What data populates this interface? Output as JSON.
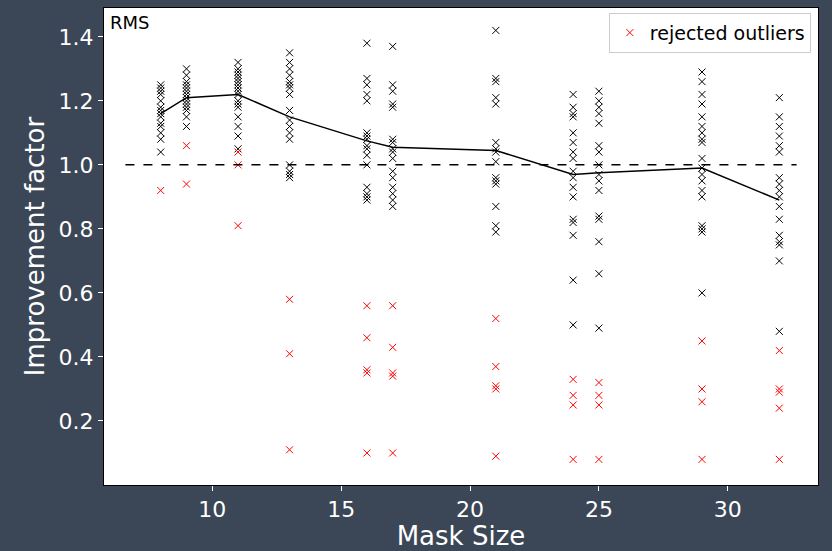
{
  "chart_data": {
    "type": "scatter",
    "annotations": [
      "RMS"
    ],
    "x_label": "Mask Size",
    "y_label": "Improvement factor",
    "xlim": [
      5.8,
      33.5
    ],
    "xticks": [
      10,
      15,
      20,
      25,
      30
    ],
    "ylim": [
      0.0,
      1.49
    ],
    "yticks": [
      0.2,
      0.4,
      0.6,
      0.8,
      {
        "value": 1.0,
        "label": "1.0"
      },
      1.2,
      1.4
    ],
    "grid": false,
    "legend": "top right",
    "reference_line": {
      "value": 1.0,
      "line_style": "dashed",
      "color": "#000000"
    },
    "series": [
      {
        "type": "scatter",
        "color": "#000000",
        "marker": "x",
        "x": [
          8,
          8,
          8,
          8,
          8,
          8,
          8,
          8,
          8,
          8,
          8,
          8,
          8,
          8,
          9,
          9,
          9,
          9,
          9,
          9,
          9,
          9,
          9,
          9,
          9,
          9,
          9,
          9,
          11,
          11,
          11,
          11,
          11,
          11,
          11,
          11,
          11,
          11,
          11,
          11,
          11,
          11,
          11,
          11,
          11,
          13,
          13,
          13,
          13,
          13,
          13,
          13,
          13,
          13,
          13,
          13,
          13,
          13,
          13,
          13,
          13,
          13,
          16,
          16,
          16,
          16,
          16,
          16,
          16,
          16,
          16,
          16,
          16,
          16,
          16,
          16,
          16,
          16,
          17,
          17,
          17,
          17,
          17,
          17,
          17,
          17,
          17,
          17,
          17,
          17,
          17,
          17,
          17,
          17,
          21,
          21,
          21,
          21,
          21,
          21,
          21,
          21,
          21,
          21,
          21,
          21,
          21,
          21,
          21,
          24,
          24,
          24,
          24,
          24,
          24,
          24,
          24,
          24,
          24,
          24,
          24,
          24,
          24,
          24,
          24,
          24,
          25,
          25,
          25,
          25,
          25,
          25,
          25,
          25,
          25,
          25,
          25,
          25,
          25,
          25,
          25,
          25,
          29,
          29,
          29,
          29,
          29,
          29,
          29,
          29,
          29,
          29,
          29,
          29,
          29,
          29,
          29,
          29,
          29,
          29,
          29,
          32,
          32,
          32,
          32,
          32,
          32,
          32,
          32,
          32,
          32,
          32,
          32,
          32,
          32,
          32,
          32,
          32
        ],
        "values": [
          1.25,
          1.24,
          1.23,
          1.22,
          1.2,
          1.18,
          1.17,
          1.16,
          1.15,
          1.13,
          1.12,
          1.1,
          1.08,
          1.04,
          1.3,
          1.28,
          1.26,
          1.25,
          1.24,
          1.23,
          1.22,
          1.21,
          1.2,
          1.19,
          1.18,
          1.17,
          1.15,
          1.12,
          1.32,
          1.3,
          1.29,
          1.28,
          1.27,
          1.26,
          1.25,
          1.24,
          1.23,
          1.22,
          1.2,
          1.19,
          1.18,
          1.15,
          1.12,
          1.09,
          1.05,
          1.35,
          1.32,
          1.3,
          1.28,
          1.26,
          1.25,
          1.24,
          1.22,
          1.17,
          1.14,
          1.12,
          1.1,
          1.08,
          1.0,
          0.98,
          0.97,
          0.96,
          1.38,
          1.27,
          1.25,
          1.22,
          1.2,
          1.1,
          1.09,
          1.08,
          1.06,
          1.05,
          1.03,
          1.0,
          0.93,
          0.91,
          0.9,
          0.89,
          1.37,
          1.25,
          1.23,
          1.19,
          1.18,
          1.08,
          1.07,
          1.05,
          1.04,
          1.02,
          0.98,
          0.96,
          0.93,
          0.91,
          0.89,
          0.87,
          1.42,
          1.27,
          1.26,
          1.21,
          1.19,
          1.07,
          1.05,
          1.04,
          1.01,
          0.96,
          0.95,
          0.94,
          0.87,
          0.81,
          0.79,
          1.22,
          1.18,
          1.16,
          1.15,
          1.1,
          1.07,
          1.04,
          1.02,
          0.98,
          0.96,
          0.93,
          0.9,
          0.83,
          0.82,
          0.78,
          0.64,
          0.5,
          1.23,
          1.2,
          1.18,
          1.16,
          1.13,
          1.06,
          1.04,
          1.0,
          0.97,
          0.95,
          0.92,
          0.84,
          0.83,
          0.76,
          0.66,
          0.49,
          1.29,
          1.26,
          1.22,
          1.19,
          1.15,
          1.12,
          1.1,
          1.08,
          1.07,
          1.02,
          0.99,
          0.97,
          0.95,
          0.92,
          0.9,
          0.81,
          0.8,
          0.79,
          0.6,
          1.21,
          1.15,
          1.12,
          1.09,
          1.06,
          1.04,
          0.96,
          0.94,
          0.92,
          0.9,
          0.87,
          0.83,
          0.78,
          0.76,
          0.75,
          0.7,
          0.48
        ]
      },
      {
        "name": "rejected outliers",
        "type": "scatter",
        "color": "#ff0000",
        "marker": "x",
        "x": [
          8,
          9,
          9,
          11,
          11,
          11,
          13,
          13,
          13,
          16,
          16,
          16,
          16,
          16,
          17,
          17,
          17,
          17,
          17,
          21,
          21,
          21,
          21,
          21,
          24,
          24,
          24,
          24,
          25,
          25,
          25,
          25,
          29,
          29,
          29,
          29,
          32,
          32,
          32,
          32,
          32
        ],
        "values": [
          0.92,
          1.06,
          0.94,
          1.04,
          1.0,
          0.81,
          0.58,
          0.41,
          0.11,
          0.56,
          0.46,
          0.36,
          0.35,
          0.1,
          0.56,
          0.43,
          0.35,
          0.34,
          0.1,
          0.52,
          0.37,
          0.31,
          0.3,
          0.09,
          0.33,
          0.28,
          0.25,
          0.08,
          0.32,
          0.28,
          0.25,
          0.08,
          0.45,
          0.3,
          0.26,
          0.08,
          0.42,
          0.3,
          0.29,
          0.24,
          0.08
        ]
      },
      {
        "type": "line",
        "color": "#000000",
        "line_style": "solid",
        "x": [
          8,
          9,
          11,
          13,
          16,
          17,
          21,
          24,
          25,
          29,
          32
        ],
        "values": [
          1.16,
          1.21,
          1.22,
          1.15,
          1.075,
          1.055,
          1.045,
          0.97,
          0.975,
          0.99,
          0.89
        ]
      }
    ]
  }
}
